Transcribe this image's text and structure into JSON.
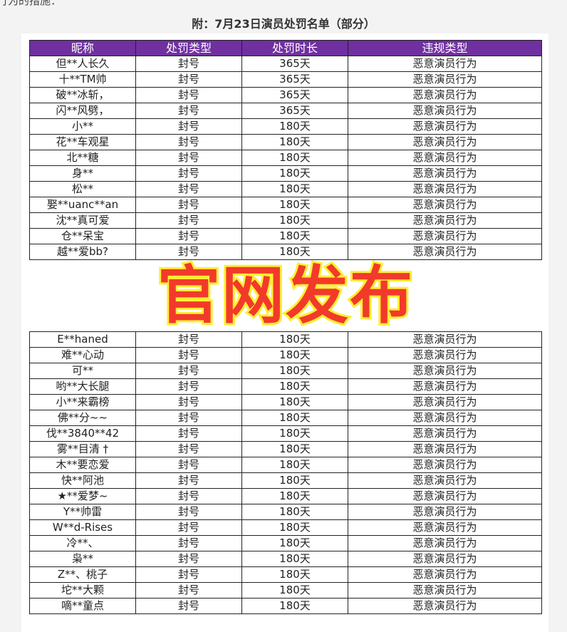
{
  "intro_text": "行为的措施：",
  "title": "附：7月23日演员处罚名单（部分）",
  "overlay_text": "官网发布",
  "colors": {
    "header_bg": "#7030a0",
    "overlay_fill": "#f23a2a",
    "overlay_outline": "#ffee33"
  },
  "table": {
    "headers": [
      "昵称",
      "处罚类型",
      "处罚时长",
      "违规类型"
    ],
    "rows": [
      [
        "但**人长久",
        "封号",
        "365天",
        "恶意演员行为"
      ],
      [
        "十**TM帅",
        "封号",
        "365天",
        "恶意演员行为"
      ],
      [
        "破**冰斩，",
        "封号",
        "365天",
        "恶意演员行为"
      ],
      [
        "闪**风劈，",
        "封号",
        "365天",
        "恶意演员行为"
      ],
      [
        "小**",
        "封号",
        "180天",
        "恶意演员行为"
      ],
      [
        "花**车观星",
        "封号",
        "180天",
        "恶意演员行为"
      ],
      [
        "北**糖",
        "封号",
        "180天",
        "恶意演员行为"
      ],
      [
        "身**",
        "封号",
        "180天",
        "恶意演员行为"
      ],
      [
        "松**",
        "封号",
        "180天",
        "恶意演员行为"
      ],
      [
        "娶**uanc**an",
        "封号",
        "180天",
        "恶意演员行为"
      ],
      [
        "沈**真可爱",
        "封号",
        "180天",
        "恶意演员行为"
      ],
      [
        "仓**呆宝",
        "封号",
        "180天",
        "恶意演员行为"
      ],
      [
        "越**爱bb?",
        "封号",
        "180天",
        "恶意演员行为"
      ],
      [
        "E**haned",
        "封号",
        "180天",
        "恶意演员行为"
      ],
      [
        "难**心动",
        "封号",
        "180天",
        "恶意演员行为"
      ],
      [
        "可**",
        "封号",
        "180天",
        "恶意演员行为"
      ],
      [
        "哟**大长腿",
        "封号",
        "180天",
        "恶意演员行为"
      ],
      [
        "小**来霸榜",
        "封号",
        "180天",
        "恶意演员行为"
      ],
      [
        "佛**分~~",
        "封号",
        "180天",
        "恶意演员行为"
      ],
      [
        "伐**3840**42",
        "封号",
        "180天",
        "恶意演员行为"
      ],
      [
        "雾**目清 †",
        "封号",
        "180天",
        "恶意演员行为"
      ],
      [
        "木**要恋爱",
        "封号",
        "180天",
        "恶意演员行为"
      ],
      [
        "快**阿池",
        "封号",
        "180天",
        "恶意演员行为"
      ],
      [
        "★**爱梦~",
        "封号",
        "180天",
        "恶意演员行为"
      ],
      [
        "Y**帅雷",
        "封号",
        "180天",
        "恶意演员行为"
      ],
      [
        "W**d-Rises",
        "封号",
        "180天",
        "恶意演员行为"
      ],
      [
        "冷**、",
        "封号",
        "180天",
        "恶意演员行为"
      ],
      [
        "枭**",
        "封号",
        "180天",
        "恶意演员行为"
      ],
      [
        "Z**、桃子",
        "封号",
        "180天",
        "恶意演员行为"
      ],
      [
        "坨**大颗",
        "封号",
        "180天",
        "恶意演员行为"
      ],
      [
        "嘀**童点",
        "封号",
        "180天",
        "恶意演员行为"
      ]
    ]
  }
}
